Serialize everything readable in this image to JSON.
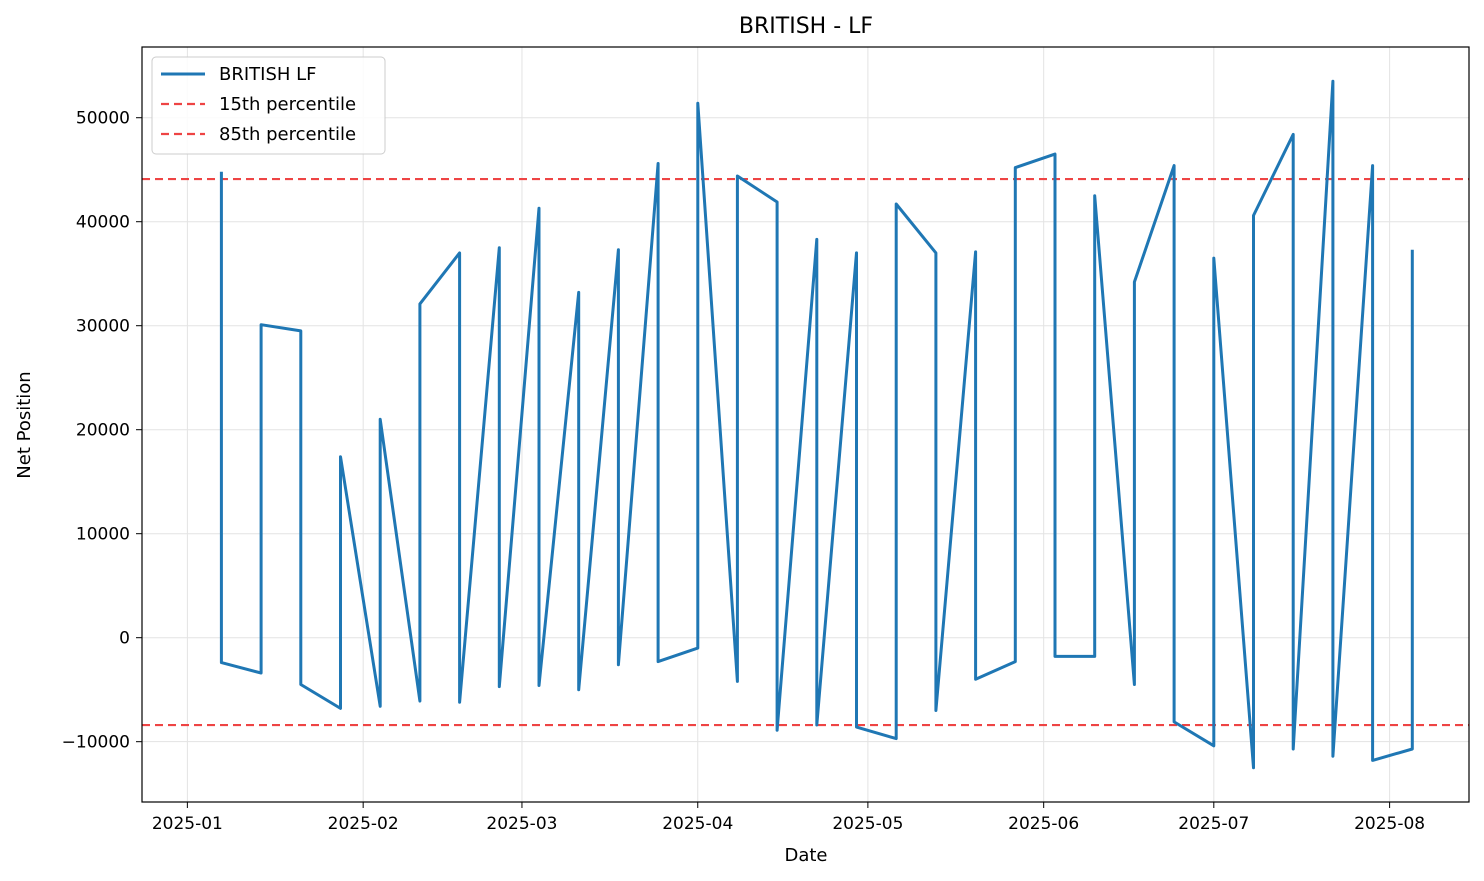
{
  "chart_data": {
    "type": "line",
    "title": "BRITISH - LF",
    "xlabel": "Date",
    "ylabel": "Net Position",
    "x_ticks": [
      "2025-01",
      "2025-02",
      "2025-03",
      "2025-04",
      "2025-05",
      "2025-06",
      "2025-07",
      "2025-08"
    ],
    "y_ticks": [
      "−10000",
      "0",
      "10000",
      "20000",
      "30000",
      "40000",
      "50000"
    ],
    "xlim": [
      "2024-12-24",
      "2025-08-15"
    ],
    "ylim": [
      -15800,
      56800
    ],
    "grid": true,
    "legend_position": "top-left",
    "series": [
      {
        "name": "BRITISH LF",
        "color": "#1f77b4",
        "points": [
          [
            "2025-01-07",
            44800
          ],
          [
            "2025-01-07",
            -2400
          ],
          [
            "2025-01-14",
            -3400
          ],
          [
            "2025-01-14",
            30100
          ],
          [
            "2025-01-21",
            29500
          ],
          [
            "2025-01-21",
            -4500
          ],
          [
            "2025-01-28",
            -6800
          ],
          [
            "2025-01-28",
            17400
          ],
          [
            "2025-02-04",
            -6600
          ],
          [
            "2025-02-04",
            21000
          ],
          [
            "2025-02-11",
            -6100
          ],
          [
            "2025-02-11",
            32100
          ],
          [
            "2025-02-18",
            37000
          ],
          [
            "2025-02-18",
            -6200
          ],
          [
            "2025-02-25",
            37500
          ],
          [
            "2025-02-25",
            -4700
          ],
          [
            "2025-03-04",
            41300
          ],
          [
            "2025-03-04",
            -4600
          ],
          [
            "2025-03-11",
            33200
          ],
          [
            "2025-03-11",
            -5000
          ],
          [
            "2025-03-18",
            37300
          ],
          [
            "2025-03-18",
            -2600
          ],
          [
            "2025-03-25",
            45600
          ],
          [
            "2025-03-25",
            -2300
          ],
          [
            "2025-04-01",
            -1000
          ],
          [
            "2025-04-01",
            51400
          ],
          [
            "2025-04-08",
            -4200
          ],
          [
            "2025-04-08",
            44400
          ],
          [
            "2025-04-15",
            41900
          ],
          [
            "2025-04-15",
            -8900
          ],
          [
            "2025-04-22",
            38300
          ],
          [
            "2025-04-22",
            -8400
          ],
          [
            "2025-04-29",
            37000
          ],
          [
            "2025-04-29",
            -8600
          ],
          [
            "2025-05-06",
            -9700
          ],
          [
            "2025-05-06",
            41700
          ],
          [
            "2025-05-13",
            37000
          ],
          [
            "2025-05-13",
            -7000
          ],
          [
            "2025-05-20",
            37100
          ],
          [
            "2025-05-20",
            -4000
          ],
          [
            "2025-05-27",
            -2300
          ],
          [
            "2025-05-27",
            45200
          ],
          [
            "2025-06-03",
            46500
          ],
          [
            "2025-06-03",
            -1800
          ],
          [
            "2025-06-10",
            -1800
          ],
          [
            "2025-06-10",
            42500
          ],
          [
            "2025-06-17",
            -4500
          ],
          [
            "2025-06-17",
            34200
          ],
          [
            "2025-06-24",
            45400
          ],
          [
            "2025-06-24",
            -8100
          ],
          [
            "2025-07-01",
            -10400
          ],
          [
            "2025-07-01",
            36500
          ],
          [
            "2025-07-08",
            -12500
          ],
          [
            "2025-07-08",
            40600
          ],
          [
            "2025-07-15",
            48400
          ],
          [
            "2025-07-15",
            -10700
          ],
          [
            "2025-07-22",
            53500
          ],
          [
            "2025-07-22",
            -11400
          ],
          [
            "2025-07-29",
            45400
          ],
          [
            "2025-07-29",
            -11800
          ],
          [
            "2025-08-05",
            -10700
          ],
          [
            "2025-08-05",
            37300
          ]
        ]
      }
    ],
    "reference_lines": [
      {
        "name": "15th percentile",
        "value": -8400,
        "color": "#ee4444",
        "style": "dashed"
      },
      {
        "name": "85th percentile",
        "value": 44100,
        "color": "#ee4444",
        "style": "dashed"
      }
    ]
  }
}
